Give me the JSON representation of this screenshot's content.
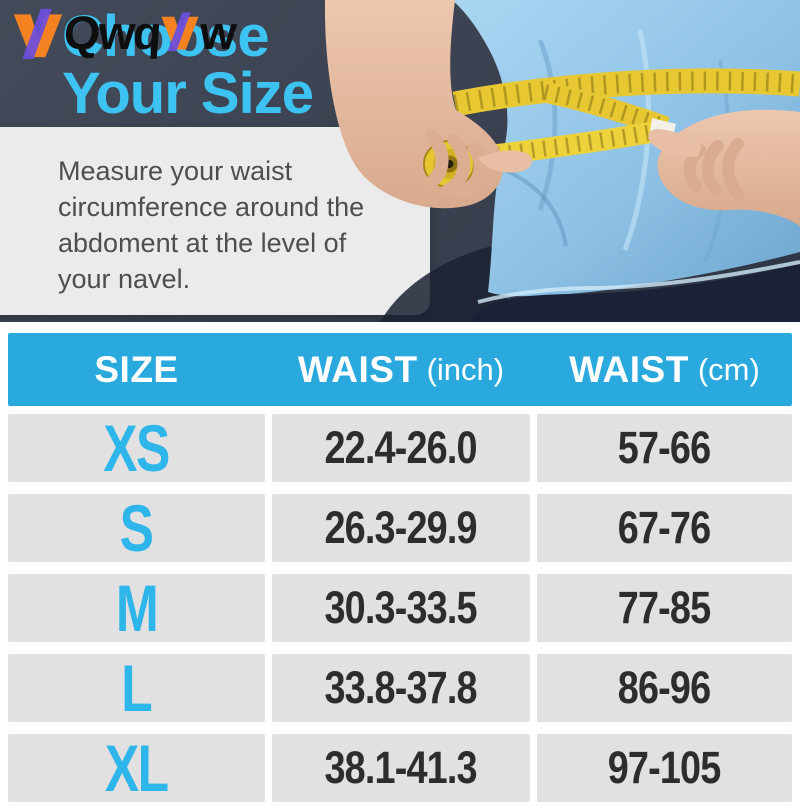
{
  "brand": {
    "logo_part1": "Qwq",
    "logo_part2": "w"
  },
  "hero": {
    "title_line1": "Choose",
    "title_line2": "Your Size",
    "description": "Measure your waist circumference around the abdoment at the level of your navel."
  },
  "table": {
    "headers": [
      {
        "label": "SIZE",
        "unit": ""
      },
      {
        "label": "WAIST",
        "unit": "(inch)"
      },
      {
        "label": "WAIST",
        "unit": "(cm)"
      }
    ],
    "rows": [
      {
        "size": "XS",
        "waist_inch": "22.4-26.0",
        "waist_cm": "57-66"
      },
      {
        "size": "S",
        "waist_inch": "26.3-29.9",
        "waist_cm": "67-76"
      },
      {
        "size": "M",
        "waist_inch": "30.3-33.5",
        "waist_cm": "77-85"
      },
      {
        "size": "L",
        "waist_inch": "33.8-37.8",
        "waist_cm": "86-96"
      },
      {
        "size": "XL",
        "waist_inch": "38.1-41.3",
        "waist_cm": "97-105"
      }
    ]
  },
  "colors": {
    "accent_cyan": "#29A9DD",
    "title_cyan": "#3CC3F2",
    "size_label_cyan": "#2EB5EA",
    "dark_bg": "#3A4150",
    "cell_gray": "#E1E1E1",
    "card_gray": "#EBEBEB",
    "number_ink": "#2D2D2D",
    "text_gray": "#4E4E4E",
    "logo_black": "#0E0E0E",
    "logo_orange": "#F58220",
    "logo_purple": "#6B4EE0",
    "shirt_blue": "#7FB5DC",
    "shirt_light": "#A9D7F2",
    "skin": "#E2B89E",
    "tape_yellow": "#E8C832",
    "shorts_navy": "#1B2238"
  }
}
